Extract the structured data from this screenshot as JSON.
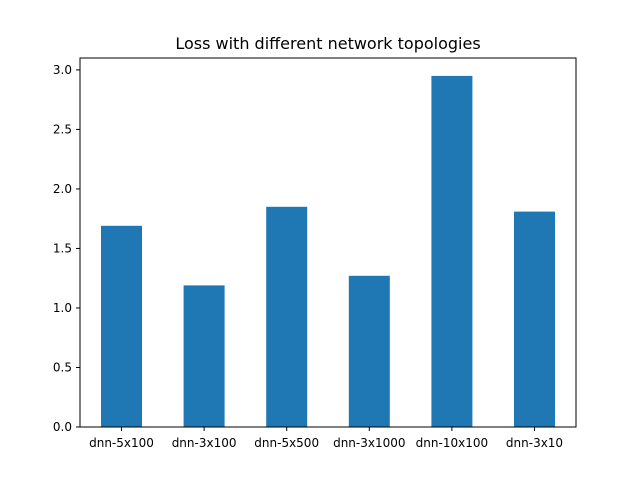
{
  "chart_data": {
    "type": "bar",
    "title": "Loss with different network topologies",
    "xlabel": "",
    "ylabel": "",
    "categories": [
      "dnn-5x100",
      "dnn-3x100",
      "dnn-5x500",
      "dnn-3x1000",
      "dnn-10x100",
      "dnn-3x10"
    ],
    "values": [
      1.69,
      1.19,
      1.85,
      1.27,
      2.95,
      1.81
    ],
    "ylim": [
      0,
      3.1
    ],
    "yticks": [
      "0.0",
      "0.5",
      "1.0",
      "1.5",
      "2.0",
      "2.5",
      "3.0"
    ],
    "grid": false,
    "legend": "none",
    "bar_color": "#1f77b4"
  }
}
